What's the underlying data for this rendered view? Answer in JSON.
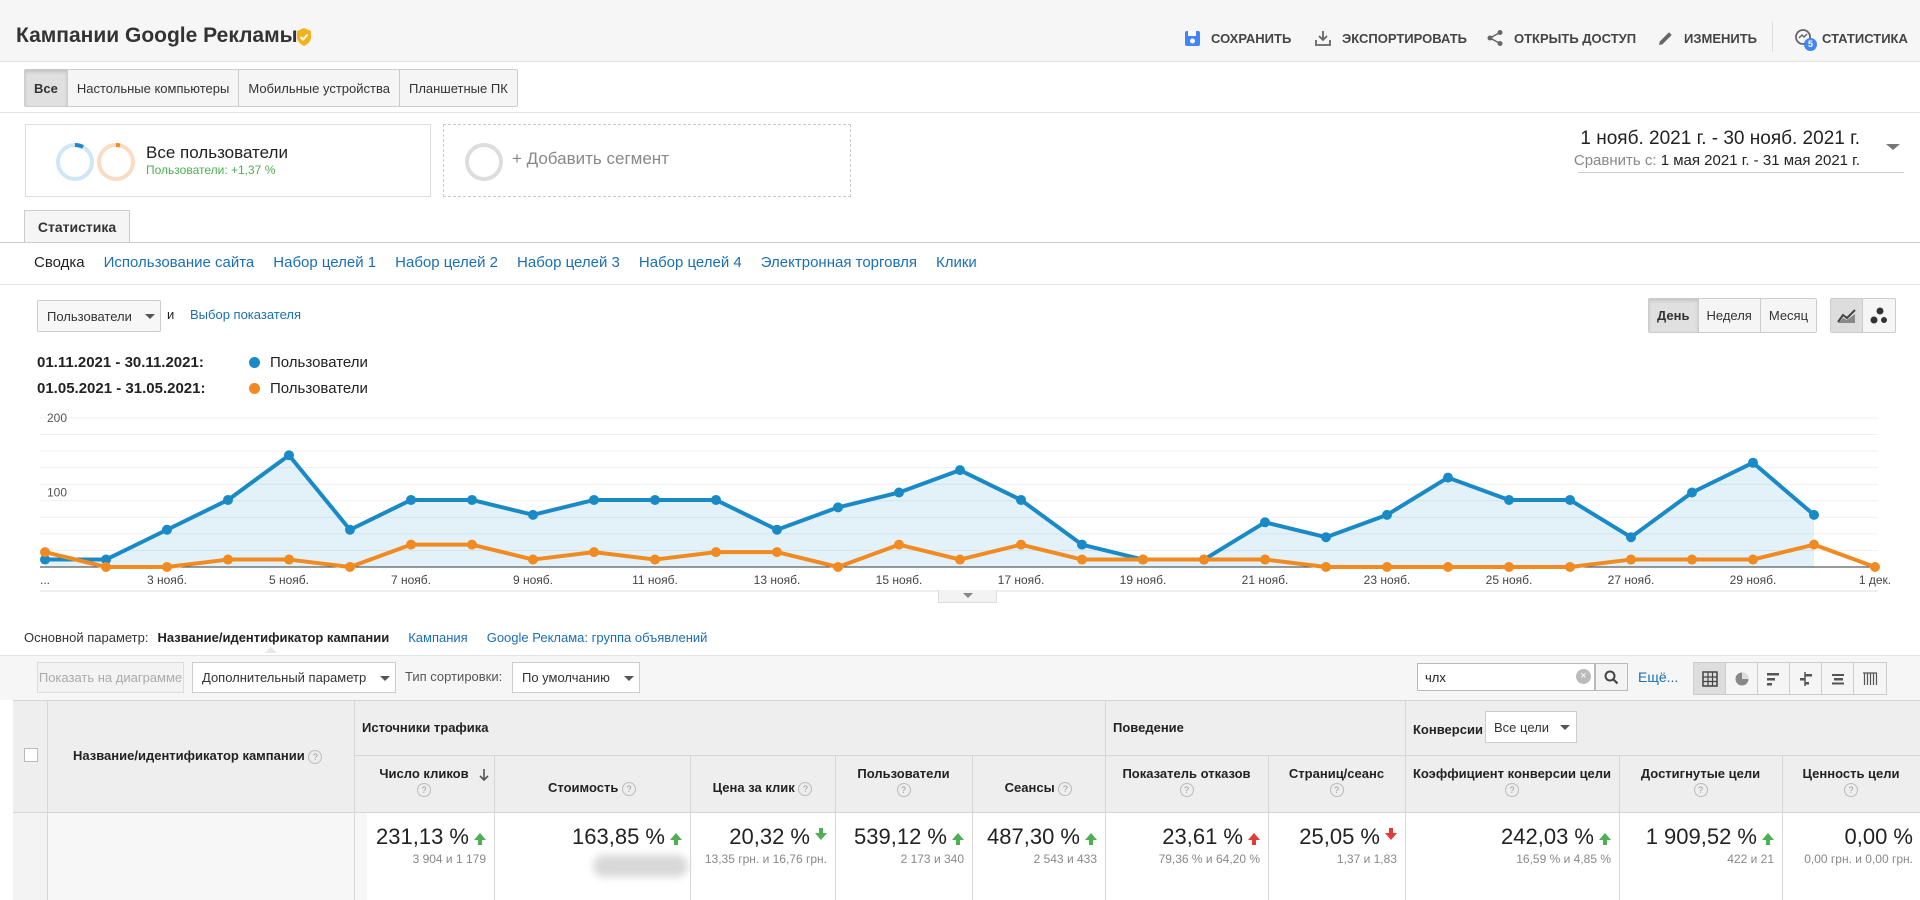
{
  "header": {
    "title": "Кампании Google Рекламы",
    "actions": {
      "save": "СОХРАНИТЬ",
      "export": "ЭКСПОРТИРОВАТЬ",
      "share": "ОТКРЫТЬ ДОСТУП",
      "edit": "ИЗМЕНИТЬ",
      "insights": "СТАТИСТИКА"
    },
    "insights_badge": "5"
  },
  "device_tabs": [
    "Все",
    "Настольные компьютеры",
    "Мобильные устройства",
    "Планшетные ПК"
  ],
  "segments": {
    "active": {
      "title": "Все пользователи",
      "subtitle": "Пользователи: +1,37 %"
    },
    "add_label": "+ Добавить сегмент"
  },
  "date_range": {
    "main": "1 нояб. 2021 г. - 30 нояб. 2021 г.",
    "compare_label": "Сравнить с:",
    "compare": "1 мая 2021 г. - 31 мая 2021 г."
  },
  "explorer_tab": "Статистика",
  "subtabs": [
    "Сводка",
    "Использование сайта",
    "Набор целей 1",
    "Набор целей 2",
    "Набор целей 3",
    "Набор целей 4",
    "Электронная торговля",
    "Клики"
  ],
  "chart_controls": {
    "metric": "Пользователи",
    "and": "и",
    "choose_metric": "Выбор показателя",
    "periods": [
      "День",
      "Неделя",
      "Месяц"
    ]
  },
  "legend": [
    {
      "range": "01.11.2021 - 30.11.2021:",
      "name": "Пользователи",
      "color": "#1a8ac6"
    },
    {
      "range": "01.05.2021 - 31.05.2021:",
      "name": "Пользователи",
      "color": "#f28a22"
    }
  ],
  "chart_data": {
    "type": "line",
    "title": "",
    "ylim": [
      0,
      200
    ],
    "yticks": [
      "200",
      "100"
    ],
    "xtick_labels": [
      "...",
      "3 нояб.",
      "5 нояб.",
      "7 нояб.",
      "9 нояб.",
      "11 нояб.",
      "13 нояб.",
      "15 нояб.",
      "17 нояб.",
      "19 нояб.",
      "21 нояб.",
      "23 нояб.",
      "25 нояб.",
      "27 нояб.",
      "29 нояб.",
      "1 дек."
    ],
    "series": [
      {
        "name": "Пользователи",
        "color": "#1a8ac6",
        "area": true,
        "values": [
          10,
          10,
          50,
          90,
          150,
          50,
          90,
          90,
          70,
          90,
          90,
          90,
          50,
          80,
          100,
          130,
          90,
          30,
          10,
          10,
          60,
          40,
          70,
          120,
          90,
          90,
          40,
          100,
          140,
          70
        ]
      },
      {
        "name": "Пользователи",
        "color": "#f28a22",
        "area": false,
        "values": [
          20,
          0,
          0,
          10,
          10,
          0,
          30,
          30,
          10,
          20,
          10,
          20,
          20,
          0,
          30,
          10,
          30,
          10,
          10,
          10,
          10,
          0,
          0,
          0,
          0,
          0,
          10,
          10,
          10,
          30,
          0
        ]
      }
    ]
  },
  "dimension": {
    "label": "Основной параметр:",
    "active": "Название/идентификатор кампании",
    "options": [
      "Кампания",
      "Google Реклама: группа объявлений"
    ]
  },
  "toolbar": {
    "show_chart": "Показать на диаграмме",
    "secondary": "Дополнительный параметр",
    "sort_label": "Тип сортировки:",
    "sort_value": "По умолчанию",
    "search_value": "члх",
    "more": "Ещё..."
  },
  "table": {
    "dim_header": "Название/идентификатор кампании",
    "groups": {
      "traffic": "Источники трафика",
      "behavior": "Поведение",
      "conversions": "Конверсии",
      "goal_select": "Все цели"
    },
    "columns": [
      {
        "label": "Число кликов",
        "value": "231,13 %",
        "trend": "up-green",
        "sub": "3 904 и 1 179"
      },
      {
        "label": "Стоимость",
        "value": "163,85 %",
        "trend": "up-green",
        "sub": ""
      },
      {
        "label": "Цена за клик",
        "value": "20,32 %",
        "trend": "down-green",
        "sub": "13,35 грн. и 16,76 грн."
      },
      {
        "label": "Пользователи",
        "value": "539,12 %",
        "trend": "up-green",
        "sub": "2 173 и 340"
      },
      {
        "label": "Сеансы",
        "value": "487,30 %",
        "trend": "up-green",
        "sub": "2 543 и 433"
      },
      {
        "label": "Показатель отказов",
        "value": "23,61 %",
        "trend": "up-red",
        "sub": "79,36 % и 64,20 %"
      },
      {
        "label": "Страниц/сеанс",
        "value": "25,05 %",
        "trend": "down-red",
        "sub": "1,37 и 1,83"
      },
      {
        "label": "Коэффициент конверсии цели",
        "value": "242,03 %",
        "trend": "up-green",
        "sub": "16,59 % и 4,85 %"
      },
      {
        "label": "Достигнутые цели",
        "value": "1 909,52 %",
        "trend": "up-green",
        "sub": "422 и 21"
      },
      {
        "label": "Ценность цели",
        "value": "0,00 %",
        "trend": "none",
        "sub": "0,00 грн. и 0,00 грн."
      }
    ]
  }
}
